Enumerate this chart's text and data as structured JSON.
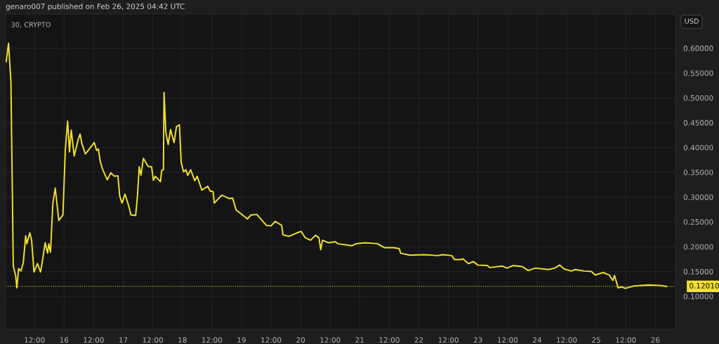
{
  "chart_data": {
    "type": "line",
    "title": "genaro007 published on Feb 26, 2025 04:42 UTC",
    "subtitle": "30, CRYPTO",
    "annotations": [
      "USD"
    ],
    "x": [
      "2025-02-15T00:29",
      "2025-02-15T01:26",
      "2025-02-15T02:24",
      "2025-02-15T03:22",
      "2025-02-15T04:19",
      "2025-02-15T04:48",
      "2025-02-15T05:31",
      "2025-02-15T06:29",
      "2025-02-15T07:26",
      "2025-02-15T08:24",
      "2025-02-15T08:53",
      "2025-02-15T10:05",
      "2025-02-15T10:48",
      "2025-02-15T11:46",
      "2025-02-15T13:12",
      "2025-02-15T14:24",
      "2025-02-15T14:53",
      "2025-02-15T16:19",
      "2025-02-15T17:17",
      "2025-02-15T17:46",
      "2025-02-15T18:29",
      "2025-02-15T19:26",
      "2025-02-15T20:24",
      "2025-02-15T21:50",
      "2025-02-15T23:31",
      "2025-02-16T00:29",
      "2025-02-16T01:26",
      "2025-02-16T02:10",
      "2025-02-16T02:53",
      "2025-02-16T04:05",
      "2025-02-16T05:46",
      "2025-02-16T06:29",
      "2025-02-16T07:12",
      "2025-02-16T08:38",
      "2025-02-16T10:05",
      "2025-02-16T12:14",
      "2025-02-16T13:12",
      "2025-02-16T13:55",
      "2025-02-16T14:38",
      "2025-02-16T15:36",
      "2025-02-16T17:31",
      "2025-02-16T18:58",
      "2025-02-16T20:24",
      "2025-02-16T21:50",
      "2025-02-16T22:34",
      "2025-02-16T23:31",
      "2025-02-17T00:43",
      "2025-02-17T02:10",
      "2025-02-17T03:07",
      "2025-02-17T05:02",
      "2025-02-17T05:46",
      "2025-02-17T06:29",
      "2025-02-17T07:12",
      "2025-02-17T08:10",
      "2025-02-17T10:05",
      "2025-02-17T11:31",
      "2025-02-17T12:14",
      "2025-02-17T12:58",
      "2025-02-17T15:07",
      "2025-02-17T15:36",
      "2025-02-17T16:19",
      "2025-02-17T16:34",
      "2025-02-17T17:17",
      "2025-02-17T18:14",
      "2025-02-17T19:12",
      "2025-02-17T20:38",
      "2025-02-17T21:36",
      "2025-02-17T22:48",
      "2025-02-17T23:31",
      "2025-02-18T00:29",
      "2025-02-18T01:26",
      "2025-02-18T02:10",
      "2025-02-18T03:22",
      "2025-02-18T05:02",
      "2025-02-18T06:00",
      "2025-02-18T07:55",
      "2025-02-18T10:19",
      "2025-02-18T11:17",
      "2025-02-18T12:29",
      "2025-02-18T12:58",
      "2025-02-18T14:38",
      "2025-02-18T16:05",
      "2025-02-18T18:58",
      "2025-02-18T20:24",
      "2025-02-18T21:50",
      "2025-02-19T01:12",
      "2025-02-19T02:24",
      "2025-02-19T03:50",
      "2025-02-19T06:14",
      "2025-02-19T10:05",
      "2025-02-19T12:00",
      "2025-02-19T13:41",
      "2025-02-19T16:19",
      "2025-02-19T16:48",
      "2025-02-19T19:12",
      "2025-02-19T22:05",
      "2025-02-20T00:14",
      "2025-02-20T01:55",
      "2025-02-20T04:05",
      "2025-02-20T06:00",
      "2025-02-20T07:26",
      "2025-02-20T08:10",
      "2025-02-20T08:53",
      "2025-02-20T11:17",
      "2025-02-20T14:10",
      "2025-02-20T15:07",
      "2025-02-20T20:53",
      "2025-02-20T22:34",
      "2025-02-21T02:24",
      "2025-02-21T07:12",
      "2025-02-21T10:05",
      "2025-02-21T13:55",
      "2025-02-21T16:05",
      "2025-02-21T16:34",
      "2025-02-21T20:24",
      "2025-02-22T02:10",
      "2025-02-22T07:41",
      "2025-02-22T09:36",
      "2025-02-22T13:26",
      "2025-02-22T14:24",
      "2025-02-22T17:17",
      "2025-02-22T17:46",
      "2025-02-22T20:10",
      "2025-02-22T22:05",
      "2025-02-23T00:00",
      "2025-02-23T03:50",
      "2025-02-23T04:48",
      "2025-02-23T09:50",
      "2025-02-23T11:46",
      "2025-02-23T14:10",
      "2025-02-23T18:00",
      "2025-02-23T20:24",
      "2025-02-23T23:17",
      "2025-02-24T04:34",
      "2025-02-24T07:12",
      "2025-02-24T09:07",
      "2025-02-24T11:02",
      "2025-02-24T13:55",
      "2025-02-24T15:22",
      "2025-02-24T19:12",
      "2025-02-24T22:05",
      "2025-02-24T23:31",
      "2025-02-25T02:53",
      "2025-02-25T05:17",
      "2025-02-25T06:43",
      "2025-02-25T07:26",
      "2025-02-25T08:53",
      "2025-02-25T10:19",
      "2025-02-25T11:46",
      "2025-02-25T15:22",
      "2025-02-25T21:07",
      "2025-02-26T01:55",
      "2025-02-26T04:30"
    ],
    "series": [
      {
        "color": "#f2e12e",
        "values": [
          0.573,
          0.61,
          0.533,
          0.161,
          0.142,
          0.117,
          0.156,
          0.151,
          0.168,
          0.222,
          0.206,
          0.228,
          0.213,
          0.149,
          0.166,
          0.149,
          0.162,
          0.208,
          0.187,
          0.206,
          0.189,
          0.288,
          0.318,
          0.253,
          0.264,
          0.396,
          0.453,
          0.391,
          0.435,
          0.383,
          0.417,
          0.427,
          0.408,
          0.387,
          0.396,
          0.41,
          0.394,
          0.397,
          0.373,
          0.356,
          0.335,
          0.349,
          0.342,
          0.343,
          0.302,
          0.288,
          0.306,
          0.283,
          0.264,
          0.263,
          0.302,
          0.361,
          0.344,
          0.378,
          0.362,
          0.361,
          0.334,
          0.342,
          0.331,
          0.354,
          0.355,
          0.511,
          0.431,
          0.406,
          0.436,
          0.41,
          0.442,
          0.446,
          0.37,
          0.351,
          0.355,
          0.344,
          0.355,
          0.333,
          0.342,
          0.314,
          0.322,
          0.312,
          0.311,
          0.288,
          0.297,
          0.304,
          0.297,
          0.298,
          0.274,
          0.261,
          0.256,
          0.264,
          0.265,
          0.243,
          0.242,
          0.251,
          0.243,
          0.224,
          0.221,
          0.227,
          0.231,
          0.218,
          0.213,
          0.223,
          0.218,
          0.194,
          0.213,
          0.208,
          0.21,
          0.206,
          0.202,
          0.206,
          0.208,
          0.206,
          0.198,
          0.198,
          0.196,
          0.187,
          0.183,
          0.184,
          0.182,
          0.184,
          0.182,
          0.174,
          0.174,
          0.176,
          0.166,
          0.17,
          0.163,
          0.162,
          0.158,
          0.161,
          0.157,
          0.162,
          0.16,
          0.152,
          0.157,
          0.154,
          0.157,
          0.163,
          0.155,
          0.151,
          0.154,
          0.151,
          0.15,
          0.143,
          0.148,
          0.143,
          0.132,
          0.142,
          0.117,
          0.119,
          0.116,
          0.121,
          0.123,
          0.122,
          0.12
        ]
      }
    ],
    "xlim": [
      "2025-02-15T00:15",
      "2025-02-26T08:10"
    ],
    "ylim": [
      0.0336,
      0.669
    ],
    "xticks": [
      {
        "value": "2025-02-15T12:00",
        "label": "12:00"
      },
      {
        "value": "2025-02-16",
        "label": "16"
      },
      {
        "value": "2025-02-16T12:00",
        "label": "12:00"
      },
      {
        "value": "2025-02-17",
        "label": "17"
      },
      {
        "value": "2025-02-17T12:00",
        "label": "12:00"
      },
      {
        "value": "2025-02-18",
        "label": "18"
      },
      {
        "value": "2025-02-18T12:00",
        "label": "12:00"
      },
      {
        "value": "2025-02-19",
        "label": "19"
      },
      {
        "value": "2025-02-19T12:00",
        "label": "12:00"
      },
      {
        "value": "2025-02-20",
        "label": "20"
      },
      {
        "value": "2025-02-20T12:00",
        "label": "12:00"
      },
      {
        "value": "2025-02-21",
        "label": "21"
      },
      {
        "value": "2025-02-21T12:00",
        "label": "12:00"
      },
      {
        "value": "2025-02-22",
        "label": "22"
      },
      {
        "value": "2025-02-22T12:00",
        "label": "12:00"
      },
      {
        "value": "2025-02-23",
        "label": "23"
      },
      {
        "value": "2025-02-23T12:00",
        "label": "12:00"
      },
      {
        "value": "2025-02-24",
        "label": "24"
      },
      {
        "value": "2025-02-24T12:00",
        "label": "12:00"
      },
      {
        "value": "2025-02-25",
        "label": "25"
      },
      {
        "value": "2025-02-25T12:00",
        "label": "12:00"
      },
      {
        "value": "2025-02-26",
        "label": "26"
      }
    ],
    "yticks": [
      {
        "value": 0.1,
        "label": "0.10000"
      },
      {
        "value": 0.15,
        "label": "0.15000"
      },
      {
        "value": 0.2,
        "label": "0.20000"
      },
      {
        "value": 0.25,
        "label": "0.25000"
      },
      {
        "value": 0.3,
        "label": "0.30000"
      },
      {
        "value": 0.35,
        "label": "0.35000"
      },
      {
        "value": 0.4,
        "label": "0.40000"
      },
      {
        "value": 0.45,
        "label": "0.45000"
      },
      {
        "value": 0.5,
        "label": "0.50000"
      },
      {
        "value": 0.55,
        "label": "0.55000"
      },
      {
        "value": 0.6,
        "label": "0.60000"
      }
    ],
    "ref_lines": [
      {
        "axis": "y",
        "value": 0.1201,
        "label": "0.12010",
        "color": "#f2e12e",
        "line_style": "dotted"
      }
    ],
    "grid": true,
    "marker": "none",
    "line_style": "solid"
  }
}
